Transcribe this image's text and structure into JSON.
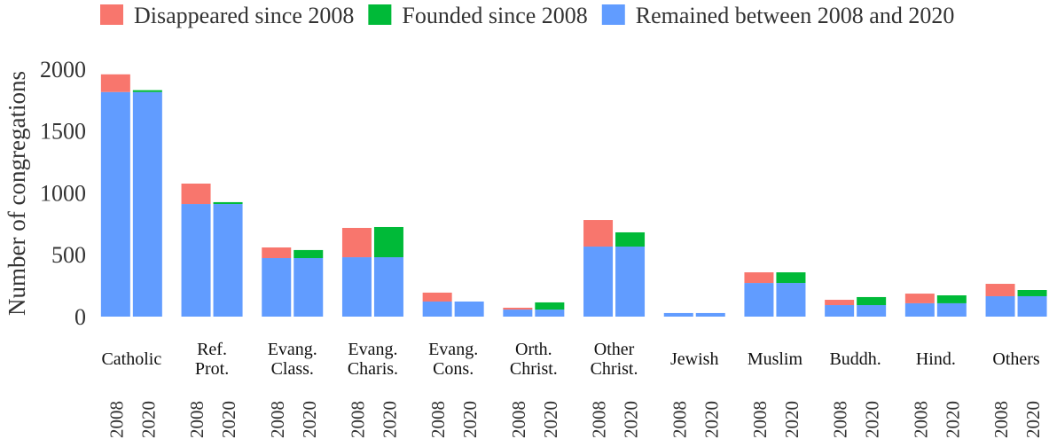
{
  "chart_data": {
    "type": "grouped_stacked_bar",
    "ylabel": "Number of congregations",
    "categories": [
      "Catholic",
      "Ref.\nProt.",
      "Evang.\nClass.",
      "Evang.\nCharis.",
      "Evang.\nCons.",
      "Orth.\nChrist.",
      "Other\nChrist.",
      "Jewish",
      "Muslim",
      "Buddh.",
      "Hind.",
      "Others"
    ],
    "subcategories": [
      "2008",
      "2020"
    ],
    "series": [
      {
        "name": "Disappeared since 2008",
        "color": "#f8766d",
        "values": [
          143,
          165,
          86,
          237,
          72,
          15,
          215,
          0,
          86,
          43,
          78,
          100
        ]
      },
      {
        "name": "Founded since 2008",
        "color": "#00ba38",
        "values": [
          15,
          15,
          65,
          244,
          0,
          58,
          115,
          0,
          86,
          65,
          64,
          50
        ]
      },
      {
        "name": "Remained between 2008 and 2020",
        "color": "#619cff",
        "values": [
          1815,
          910,
          473,
          480,
          122,
          57,
          566,
          29,
          272,
          93,
          108,
          165
        ]
      }
    ],
    "ylim": [
      0,
      2100
    ],
    "yticks": [
      0,
      500,
      1000,
      1500,
      2000
    ]
  }
}
